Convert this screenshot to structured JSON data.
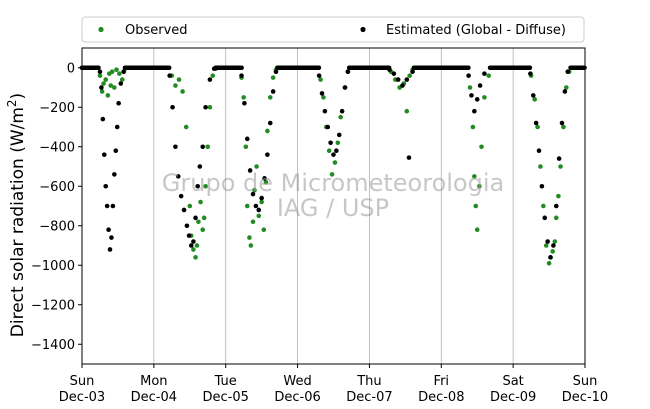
{
  "chart_data": {
    "type": "scatter",
    "ylabel_main": "Direct solar radiation (W/m",
    "ylabel_sup": "2",
    "ylabel_close": ")",
    "xlabel": "",
    "ylim": [
      -1500,
      100
    ],
    "yticks": [
      0,
      -200,
      -400,
      -600,
      -800,
      -1000,
      -1200,
      -1400
    ],
    "xlim": [
      0,
      7
    ],
    "xticks": [
      {
        "pos": 0,
        "day": "Sun",
        "date": "Dec-03"
      },
      {
        "pos": 1,
        "day": "Mon",
        "date": "Dec-04"
      },
      {
        "pos": 2,
        "day": "Tue",
        "date": "Dec-05"
      },
      {
        "pos": 3,
        "day": "Wed",
        "date": "Dec-06"
      },
      {
        "pos": 4,
        "day": "Thu",
        "date": "Dec-07"
      },
      {
        "pos": 5,
        "day": "Fri",
        "date": "Dec-08"
      },
      {
        "pos": 6,
        "day": "Sat",
        "date": "Dec-09"
      },
      {
        "pos": 7,
        "day": "Sun",
        "date": "Dec-10"
      }
    ],
    "grid": "vertical",
    "legend_placement": "top-outside",
    "watermark_line1": "Grupo de Micrometeorologia",
    "watermark_line2": "IAG / USP",
    "series": [
      {
        "name": "Observed",
        "color": "#228b22",
        "points": [
          [
            0.25,
            -40
          ],
          [
            0.28,
            -120
          ],
          [
            0.3,
            -80
          ],
          [
            0.33,
            -60
          ],
          [
            0.36,
            -140
          ],
          [
            0.38,
            -30
          ],
          [
            0.4,
            -90
          ],
          [
            0.42,
            -20
          ],
          [
            0.45,
            -100
          ],
          [
            0.48,
            -10
          ],
          [
            0.52,
            -30
          ],
          [
            0.56,
            -60
          ],
          [
            0.6,
            -5
          ],
          [
            1.25,
            -40
          ],
          [
            1.3,
            -90
          ],
          [
            1.35,
            -60
          ],
          [
            1.4,
            -120
          ],
          [
            1.45,
            -300
          ],
          [
            1.5,
            -700
          ],
          [
            1.52,
            -850
          ],
          [
            1.55,
            -920
          ],
          [
            1.58,
            -960
          ],
          [
            1.6,
            -900
          ],
          [
            1.62,
            -780
          ],
          [
            1.65,
            -680
          ],
          [
            1.68,
            -820
          ],
          [
            1.7,
            -760
          ],
          [
            1.72,
            -600
          ],
          [
            1.75,
            -400
          ],
          [
            1.78,
            -200
          ],
          [
            1.82,
            -40
          ],
          [
            1.86,
            -5
          ],
          [
            2.22,
            -50
          ],
          [
            2.25,
            -150
          ],
          [
            2.28,
            -400
          ],
          [
            2.3,
            -700
          ],
          [
            2.33,
            -860
          ],
          [
            2.35,
            -900
          ],
          [
            2.38,
            -780
          ],
          [
            2.4,
            -620
          ],
          [
            2.43,
            -500
          ],
          [
            2.46,
            -750
          ],
          [
            2.5,
            -680
          ],
          [
            2.53,
            -820
          ],
          [
            2.56,
            -580
          ],
          [
            2.58,
            -320
          ],
          [
            2.62,
            -150
          ],
          [
            2.66,
            -50
          ],
          [
            2.7,
            -10
          ],
          [
            3.32,
            -60
          ],
          [
            3.36,
            -150
          ],
          [
            3.4,
            -300
          ],
          [
            3.44,
            -420
          ],
          [
            3.48,
            -540
          ],
          [
            3.52,
            -480
          ],
          [
            3.56,
            -380
          ],
          [
            3.6,
            -250
          ],
          [
            3.66,
            -100
          ],
          [
            3.7,
            -20
          ],
          [
            4.3,
            -20
          ],
          [
            4.36,
            -60
          ],
          [
            4.42,
            -100
          ],
          [
            4.48,
            -80
          ],
          [
            4.52,
            -220
          ],
          [
            4.56,
            -40
          ],
          [
            4.6,
            -10
          ],
          [
            5.4,
            -100
          ],
          [
            5.44,
            -300
          ],
          [
            5.46,
            -550
          ],
          [
            5.48,
            -700
          ],
          [
            5.5,
            -820
          ],
          [
            5.53,
            -600
          ],
          [
            5.56,
            -400
          ],
          [
            5.6,
            -150
          ],
          [
            5.66,
            -40
          ],
          [
            6.25,
            -40
          ],
          [
            6.3,
            -160
          ],
          [
            6.34,
            -300
          ],
          [
            6.38,
            -500
          ],
          [
            6.42,
            -700
          ],
          [
            6.46,
            -900
          ],
          [
            6.5,
            -990
          ],
          [
            6.52,
            -960
          ],
          [
            6.55,
            -930
          ],
          [
            6.58,
            -880
          ],
          [
            6.6,
            -760
          ],
          [
            6.63,
            -650
          ],
          [
            6.66,
            -500
          ],
          [
            6.7,
            -300
          ],
          [
            6.74,
            -100
          ],
          [
            6.78,
            -20
          ]
        ]
      },
      {
        "name": "Estimated (Global - Diffuse)",
        "color": "#000000",
        "points": [
          [
            0.25,
            -20
          ],
          [
            0.27,
            -100
          ],
          [
            0.29,
            -260
          ],
          [
            0.31,
            -440
          ],
          [
            0.33,
            -600
          ],
          [
            0.35,
            -700
          ],
          [
            0.37,
            -820
          ],
          [
            0.39,
            -920
          ],
          [
            0.41,
            -860
          ],
          [
            0.43,
            -700
          ],
          [
            0.45,
            -540
          ],
          [
            0.47,
            -420
          ],
          [
            0.49,
            -300
          ],
          [
            0.51,
            -180
          ],
          [
            0.54,
            -80
          ],
          [
            0.58,
            -20
          ],
          [
            1.22,
            -40
          ],
          [
            1.26,
            -200
          ],
          [
            1.3,
            -400
          ],
          [
            1.34,
            -550
          ],
          [
            1.38,
            -650
          ],
          [
            1.42,
            -720
          ],
          [
            1.46,
            -800
          ],
          [
            1.49,
            -850
          ],
          [
            1.52,
            -900
          ],
          [
            1.55,
            -880
          ],
          [
            1.58,
            -760
          ],
          [
            1.61,
            -600
          ],
          [
            1.64,
            -500
          ],
          [
            1.68,
            -400
          ],
          [
            1.72,
            -200
          ],
          [
            1.78,
            -60
          ],
          [
            1.84,
            -5
          ],
          [
            2.22,
            -40
          ],
          [
            2.26,
            -180
          ],
          [
            2.3,
            -360
          ],
          [
            2.34,
            -520
          ],
          [
            2.38,
            -640
          ],
          [
            2.42,
            -700
          ],
          [
            2.46,
            -720
          ],
          [
            2.5,
            -660
          ],
          [
            2.54,
            -560
          ],
          [
            2.58,
            -440
          ],
          [
            2.62,
            -280
          ],
          [
            2.66,
            -120
          ],
          [
            2.7,
            -20
          ],
          [
            3.3,
            -40
          ],
          [
            3.34,
            -130
          ],
          [
            3.38,
            -220
          ],
          [
            3.42,
            -300
          ],
          [
            3.46,
            -380
          ],
          [
            3.5,
            -440
          ],
          [
            3.54,
            -420
          ],
          [
            3.58,
            -340
          ],
          [
            3.62,
            -220
          ],
          [
            3.66,
            -100
          ],
          [
            3.7,
            -20
          ],
          [
            4.28,
            -10
          ],
          [
            4.34,
            -30
          ],
          [
            4.4,
            -60
          ],
          [
            4.46,
            -90
          ],
          [
            4.52,
            -60
          ],
          [
            4.55,
            -455
          ],
          [
            4.6,
            -20
          ],
          [
            5.38,
            -40
          ],
          [
            5.42,
            -140
          ],
          [
            5.46,
            -220
          ],
          [
            5.5,
            -160
          ],
          [
            5.54,
            -90
          ],
          [
            5.6,
            -30
          ],
          [
            6.24,
            -30
          ],
          [
            6.28,
            -140
          ],
          [
            6.32,
            -280
          ],
          [
            6.36,
            -420
          ],
          [
            6.4,
            -600
          ],
          [
            6.44,
            -760
          ],
          [
            6.48,
            -880
          ],
          [
            6.52,
            -960
          ],
          [
            6.56,
            -900
          ],
          [
            6.6,
            -700
          ],
          [
            6.64,
            -460
          ],
          [
            6.68,
            -280
          ],
          [
            6.72,
            -120
          ],
          [
            6.76,
            -20
          ]
        ]
      }
    ]
  }
}
